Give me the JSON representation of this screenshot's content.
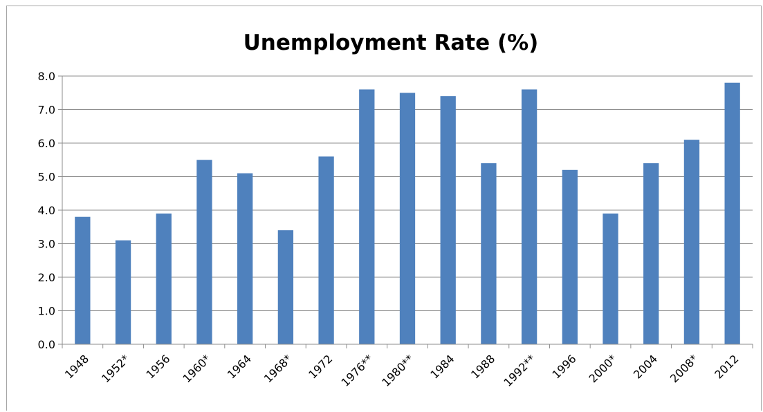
{
  "chart_data": {
    "type": "bar",
    "title": "Unemployment Rate (%)",
    "xlabel": "",
    "ylabel": "",
    "categories": [
      "1948",
      "1952*",
      "1956",
      "1960*",
      "1964",
      "1968*",
      "1972",
      "1976**",
      "1980**",
      "1984",
      "1988",
      "1992**",
      "1996",
      "2000*",
      "2004",
      "2008*",
      "2012"
    ],
    "values": [
      3.8,
      3.1,
      3.9,
      5.5,
      5.1,
      3.4,
      5.6,
      7.6,
      7.5,
      7.4,
      5.4,
      7.6,
      5.2,
      3.9,
      5.4,
      6.1,
      7.8
    ],
    "ylim": [
      0,
      8
    ],
    "yticks": [
      "0.0",
      "1.0",
      "2.0",
      "3.0",
      "4.0",
      "5.0",
      "6.0",
      "7.0",
      "8.0"
    ],
    "grid": true,
    "legend": "none",
    "bar_color": "#4f81bd"
  }
}
